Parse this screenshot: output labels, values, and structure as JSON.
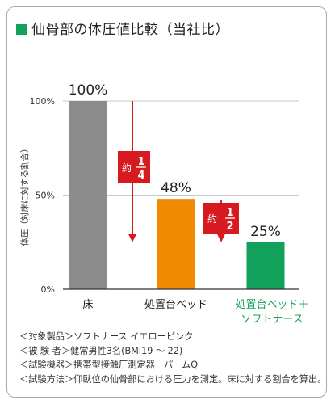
{
  "title": "仙骨部の体圧値比較（当社比）",
  "colors": {
    "accent": "#12a15a",
    "bar_gray": "#8c8c8c",
    "bar_orange": "#f08a00",
    "bar_green": "#12a15a",
    "arrow_red": "#d71920",
    "axis": "#333333",
    "grid": "#c8c8c8"
  },
  "chart_data": {
    "type": "bar",
    "title": "仙骨部の体圧値比較（当社比）",
    "ylabel": "体圧（対床に対する割合）",
    "xlabel": "",
    "ylim": [
      0,
      100
    ],
    "yticks": [
      0,
      50,
      100
    ],
    "ytick_labels": [
      "0%",
      "50%",
      "100%"
    ],
    "grid": true,
    "categories": [
      "床",
      "処置台ベッド",
      "処置台ベッド＋ソフトナース"
    ],
    "category_label_lines": [
      [
        "床"
      ],
      [
        "処置台ベッド"
      ],
      [
        "処置台ベッド＋",
        "ソフトナース"
      ]
    ],
    "values": [
      100,
      48,
      25
    ],
    "data_labels": [
      "100%",
      "48%",
      "25%"
    ],
    "bar_colors": [
      "#8c8c8c",
      "#f08a00",
      "#12a15a"
    ],
    "category_label_colors": [
      "#222222",
      "#222222",
      "#12a15a"
    ],
    "annotations": [
      {
        "prefix": "約",
        "numerator": "1",
        "denominator": "4",
        "from_value": 100,
        "to_value": 25
      },
      {
        "prefix": "約",
        "numerator": "1",
        "denominator": "2",
        "from_value": 48,
        "to_value": 25
      }
    ]
  },
  "notes": [
    "＜対象製品＞ソフトナース イエローピンク",
    "＜被 験 者＞健常男性3名(BMI19 ～ 22)",
    "＜試験機器＞携帯型接触圧測定器　パームQ",
    "＜試験方法＞仰臥位の仙骨部における圧力を測定。床に対する割合を算出。"
  ]
}
